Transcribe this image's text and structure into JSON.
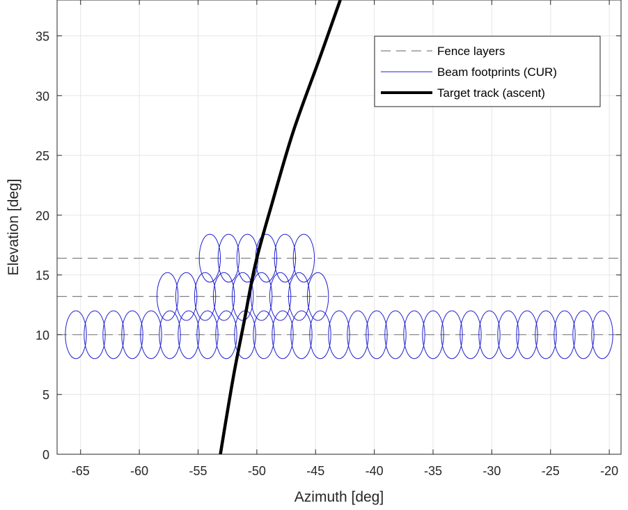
{
  "chart_data": {
    "type": "line",
    "title": "",
    "xlabel": "Azimuth [deg]",
    "ylabel": "Elevation [deg]",
    "xlim": [
      -67,
      -19
    ],
    "ylim": [
      0,
      38
    ],
    "xticks": [
      -65,
      -60,
      -55,
      -50,
      -45,
      -40,
      -35,
      -30,
      -25,
      -20
    ],
    "yticks": [
      0,
      5,
      10,
      15,
      20,
      25,
      30,
      35
    ],
    "grid": true,
    "legend_position": "top-right",
    "colors": {
      "fence": "#808080",
      "beam": "#1f1fd0",
      "track": "#000000"
    },
    "series": [
      {
        "name": "Fence layers",
        "style": "dashed",
        "elevations": [
          10,
          13.2,
          16.4
        ],
        "x_range": [
          -67,
          -19
        ]
      },
      {
        "name": "Beam footprints (CUR)",
        "style": "ellipse",
        "beam_width_az": 1.8,
        "beam_width_el": 4,
        "layers": [
          {
            "elevation": 10,
            "centers": [
              -65.4,
              -63.8,
              -62.2,
              -60.6,
              -59.0,
              -57.4,
              -55.8,
              -54.2,
              -52.6,
              -51.0,
              -49.4,
              -47.8,
              -46.2,
              -44.6,
              -43.0,
              -41.4,
              -39.8,
              -38.2,
              -36.6,
              -35.0,
              -33.4,
              -31.8,
              -30.2,
              -28.6,
              -27.0,
              -25.4,
              -23.8,
              -22.2,
              -20.6
            ]
          },
          {
            "elevation": 13.2,
            "centers": [
              -57.6,
              -56.0,
              -54.4,
              -52.8,
              -51.2,
              -49.6,
              -48.0,
              -46.4,
              -44.8
            ]
          },
          {
            "elevation": 16.4,
            "centers": [
              -54.0,
              -52.4,
              -50.8,
              -49.2,
              -47.6,
              -46.0
            ]
          }
        ]
      },
      {
        "name": "Target track (ascent)",
        "style": "solid-thick",
        "x": [
          -53.1,
          -52.6,
          -51.9,
          -51.1,
          -50.1,
          -48.7,
          -46.9,
          -44.7,
          -42.9
        ],
        "y": [
          0,
          3,
          7,
          11,
          16,
          21,
          27,
          33,
          38
        ]
      }
    ]
  }
}
